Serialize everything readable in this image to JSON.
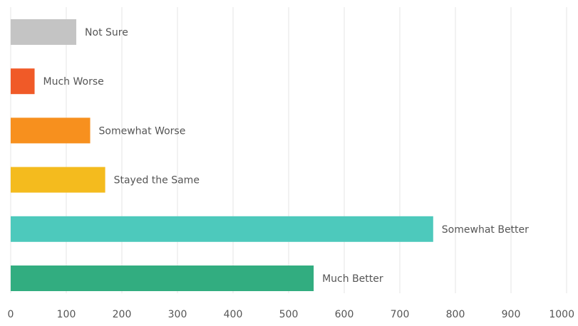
{
  "chart_data": {
    "type": "bar",
    "orientation": "horizontal",
    "title": "",
    "xlabel": "",
    "ylabel": "",
    "xlim": [
      0,
      1000
    ],
    "x_ticks": [
      0,
      100,
      200,
      300,
      400,
      500,
      600,
      700,
      800,
      900,
      1000
    ],
    "grid": true,
    "legend": "none",
    "categories": [
      "Not Sure",
      "Much Worse",
      "Somewhat Worse",
      "Stayed the Same",
      "Somewhat Better",
      "Much Better"
    ],
    "values": [
      118,
      43,
      143,
      170,
      760,
      545
    ],
    "colors": [
      "#c4c4c4",
      "#f05a28",
      "#f7901e",
      "#f4bb1e",
      "#4dc9bc",
      "#32ad80"
    ]
  }
}
